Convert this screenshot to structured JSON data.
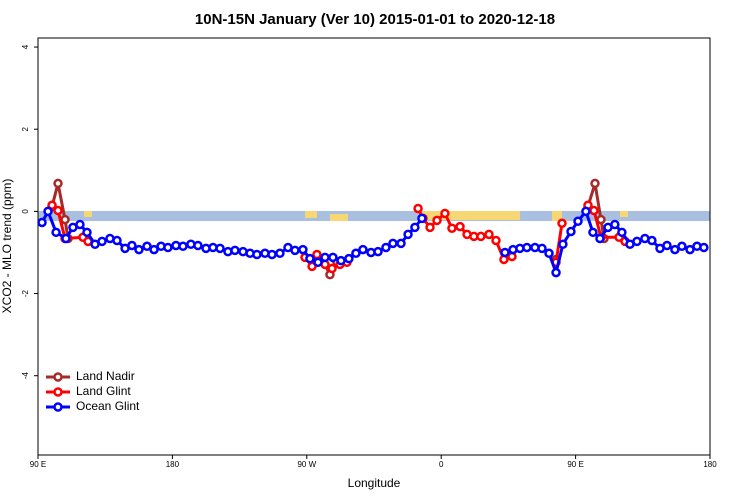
{
  "chart_data": {
    "type": "line",
    "title": "10N-15N January (Ver 10)   2015-01-01 to 2020-12-18",
    "x_label": "Longitude",
    "y_label": "XCO2 - MLO trend (ppm)",
    "xlim": [
      90,
      540
    ],
    "ylim": [
      -5.93,
      4.22
    ],
    "xticks": [
      {
        "value": 90,
        "label": "90 E"
      },
      {
        "value": 180,
        "label": "180"
      },
      {
        "value": 270,
        "label": "90 W"
      },
      {
        "value": 360,
        "label": "0"
      },
      {
        "value": 450,
        "label": "90 E"
      },
      {
        "value": 540,
        "label": "180"
      }
    ],
    "yticks": [
      -4,
      -2,
      0,
      2,
      4
    ],
    "legend": "bottom-left",
    "series": [
      {
        "name": "Land Nadir",
        "color": "#a52a2a",
        "x": [
          99.4,
          103.4,
          108.1,
          110.1,
          200,
          280.2,
          285.5,
          290.2,
          400,
          436.9,
          450,
          458.3,
          463.0,
          467.0,
          469.0
        ],
        "values": [
          0.12,
          0.68,
          -0.2,
          -0.66,
          null,
          -1.15,
          -1.54,
          -1.24,
          null,
          -1.17,
          null,
          0.12,
          0.68,
          -0.2,
          -0.66
        ]
      },
      {
        "name": "Land Glint",
        "color": "#ff0000",
        "x": [
          99.4,
          103.4,
          108.1,
          120.1,
          123.5,
          200,
          268.8,
          273.5,
          276.8,
          282.2,
          286.9,
          292.2,
          296.9,
          320,
          344.5,
          347.8,
          352.5,
          357.2,
          362.5,
          367.2,
          372.6,
          377.3,
          381.9,
          386.6,
          392.0,
          396.7,
          402.0,
          407.4,
          420,
          436.9,
          440.9,
          450,
          458.3,
          462.3,
          467.0,
          479.1,
          483.1
        ],
        "values": [
          0.15,
          0.02,
          -0.66,
          -0.63,
          -0.73,
          null,
          -1.12,
          -1.34,
          -1.05,
          -1.29,
          -1.39,
          -1.29,
          -1.24,
          null,
          0.07,
          -0.17,
          -0.39,
          -0.22,
          -0.05,
          -0.41,
          -0.37,
          -0.56,
          -0.61,
          -0.61,
          -0.56,
          -0.71,
          -1.17,
          -1.1,
          null,
          -1.24,
          -0.29,
          null,
          0.15,
          0.02,
          -0.63,
          -0.63,
          -0.73
        ]
      },
      {
        "name": "Ocean Glint",
        "color": "#0000ff",
        "x": [
          92.7,
          96.7,
          102.1,
          108.7,
          113.4,
          118.1,
          122.8,
          128.2,
          132.9,
          138.2,
          142.9,
          148.3,
          152.9,
          157.6,
          163.0,
          167.7,
          172.4,
          177.0,
          182.4,
          187.1,
          192.4,
          197.1,
          202.5,
          207.2,
          211.9,
          217.2,
          221.9,
          227.3,
          232.0,
          236.6,
          242.0,
          246.7,
          252.0,
          257.4,
          262.1,
          267.4,
          272.1,
          277.5,
          282.2,
          287.5,
          292.9,
          298.2,
          302.9,
          307.6,
          313.0,
          317.7,
          323.0,
          327.7,
          333.1,
          337.8,
          342.4,
          347.1,
          375,
          402.7,
          408.1,
          412.7,
          417.4,
          422.8,
          427.5,
          432.2,
          436.9,
          441.5,
          446.9,
          451.6,
          456.9,
          461.6,
          466.3,
          471.7,
          476.3,
          481.0,
          486.4,
          491.1,
          496.4,
          501.1,
          506.5,
          511.2,
          516.5,
          521.2,
          526.6,
          531.3,
          535.9
        ],
        "values": [
          -0.27,
          0,
          -0.51,
          -0.66,
          -0.39,
          -0.32,
          -0.51,
          -0.8,
          -0.73,
          -0.66,
          -0.71,
          -0.9,
          -0.83,
          -0.93,
          -0.85,
          -0.93,
          -0.85,
          -0.88,
          -0.83,
          -0.85,
          -0.8,
          -0.83,
          -0.9,
          -0.88,
          -0.9,
          -0.98,
          -0.95,
          -0.98,
          -1.02,
          -1.05,
          -1.02,
          -1.05,
          -1.02,
          -0.88,
          -0.95,
          -0.93,
          -1.15,
          -1.24,
          -1.12,
          -1.12,
          -1.2,
          -1.15,
          -1.02,
          -0.93,
          -1.0,
          -0.98,
          -0.88,
          -0.78,
          -0.78,
          -0.56,
          -0.39,
          -0.17,
          null,
          -1.0,
          -0.93,
          -0.9,
          -0.88,
          -0.88,
          -0.9,
          -1.02,
          -1.49,
          -0.8,
          -0.49,
          -0.24,
          0,
          -0.51,
          -0.66,
          -0.39,
          -0.32,
          -0.51,
          -0.8,
          -0.73,
          -0.66,
          -0.71,
          -0.9,
          -0.83,
          -0.93,
          -0.85,
          -0.93,
          -0.85,
          -0.88
        ]
      }
    ]
  }
}
